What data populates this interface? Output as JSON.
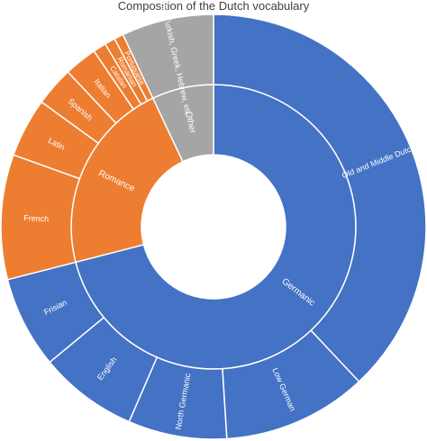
{
  "chart_data": {
    "type": "sunburst",
    "title": "Composition of the Dutch vocabulary",
    "rings": {
      "inner": [
        {
          "name": "Germanic",
          "value": 71.0,
          "color": "#4472C4"
        },
        {
          "name": "Romance",
          "value": 22.0,
          "color": "#ED7D31"
        },
        {
          "name": "Other",
          "value": 7.0,
          "color": "#A5A5A5"
        }
      ],
      "outer": [
        {
          "name": "Old and Middle Dutch",
          "value": 38.0,
          "parent": "Germanic"
        },
        {
          "name": "Low German",
          "value": 11.0,
          "parent": "Germanic"
        },
        {
          "name": "North Germanic",
          "value": 7.5,
          "parent": "Germanic"
        },
        {
          "name": "English",
          "value": 7.5,
          "parent": "Germanic"
        },
        {
          "name": "Frisian",
          "value": 7.0,
          "parent": "Germanic"
        },
        {
          "name": "French",
          "value": 9.5,
          "parent": "Romance"
        },
        {
          "name": "Latin",
          "value": 4.5,
          "parent": "Romance"
        },
        {
          "name": "Spanish",
          "value": 3.0,
          "parent": "Romance"
        },
        {
          "name": "Italian",
          "value": 2.5,
          "parent": "Romance"
        },
        {
          "name": "Catalan",
          "value": 1.0,
          "parent": "Romance"
        },
        {
          "name": "Romanian",
          "value": 0.8,
          "parent": "Romance"
        },
        {
          "name": "Portuguese",
          "value": 0.7,
          "parent": "Romance"
        },
        {
          "name": "Arabic, Turkish, Greek, Hebrew, etc.",
          "value": 7.0,
          "parent": "Other"
        }
      ]
    }
  }
}
